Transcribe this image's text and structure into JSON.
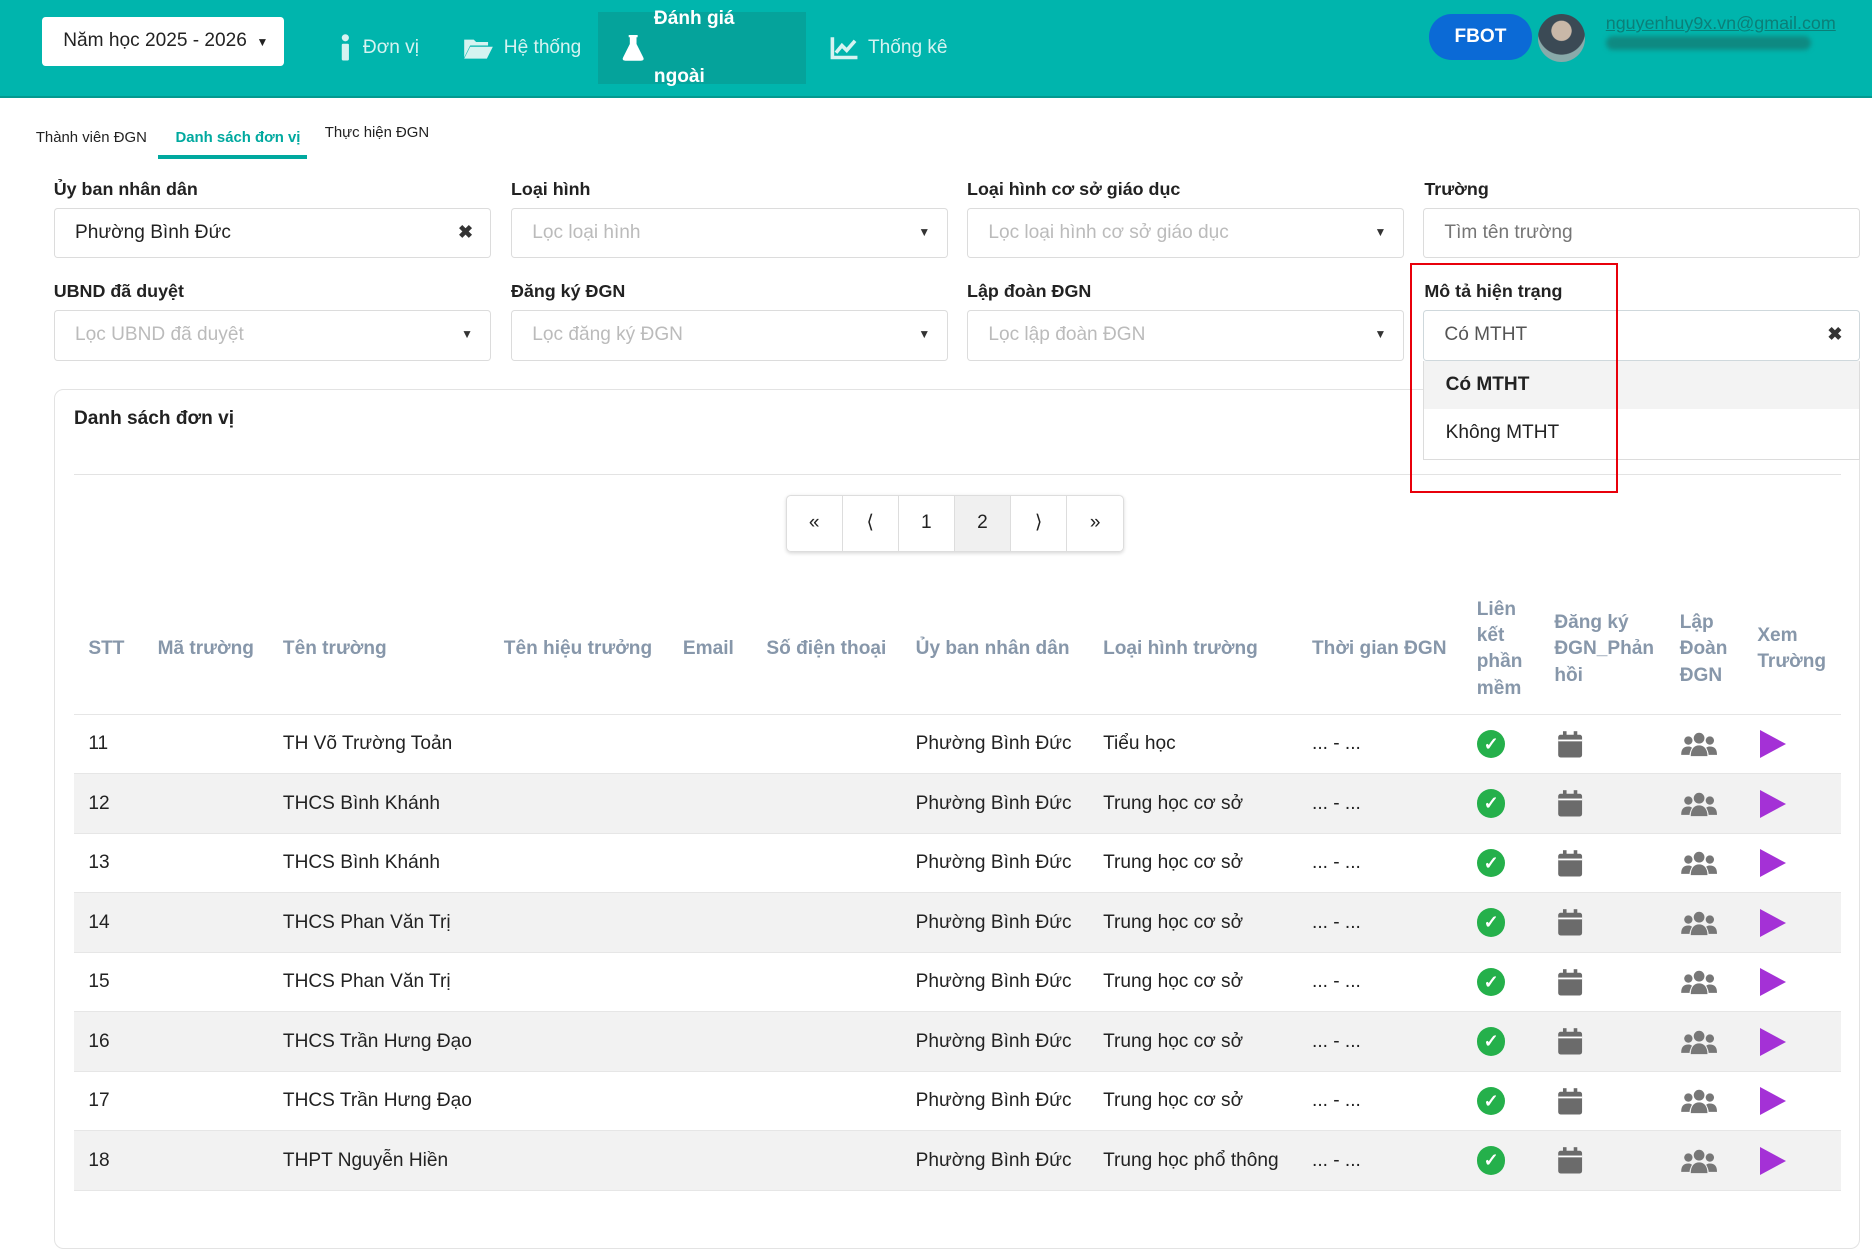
{
  "header": {
    "year_select": "Năm học 2025 - 2026",
    "nav": [
      {
        "label": "Đơn vị",
        "icon": "info-icon"
      },
      {
        "label": "Hệ thống",
        "icon": "folder-icon"
      },
      {
        "label": "Đánh giá ngoài",
        "icon": "flask-icon",
        "active": true
      },
      {
        "label": "Thống kê",
        "icon": "chart-line-icon"
      }
    ],
    "fbot": "FBOT",
    "email": "nguyenhuy9x.vn@gmail.com"
  },
  "subtabs": [
    {
      "label": "Thành viên ĐGN"
    },
    {
      "label": "Danh sách đơn vị",
      "active": true
    },
    {
      "label": "Thực hiện ĐGN"
    }
  ],
  "filters": [
    {
      "label": "Ủy ban nhân dân",
      "value": "Phường Bình Đức",
      "placeholder": ""
    },
    {
      "label": "Loại hình",
      "value": "",
      "placeholder": "Lọc loại hình"
    },
    {
      "label": "Loại hình cơ sở giáo dục",
      "value": "",
      "placeholder": "Lọc loại hình cơ sở giáo dục"
    },
    {
      "label": "Trường",
      "value": "",
      "placeholder": "Tìm tên trường"
    },
    {
      "label": "UBND đã duyệt",
      "value": "",
      "placeholder": "Lọc UBND đã duyệt"
    },
    {
      "label": "Đăng ký ĐGN",
      "value": "",
      "placeholder": "Lọc đăng ký ĐGN"
    },
    {
      "label": "Lập đoàn ĐGN",
      "value": "",
      "placeholder": "Lọc lập đoàn ĐGN"
    },
    {
      "label": "Mô tả hiện trạng",
      "value": "Có MTHT",
      "placeholder": "",
      "options": [
        "Có MTHT",
        "Không MTHT"
      ]
    }
  ],
  "card": {
    "title": "Danh sách đơn vị"
  },
  "pagination": [
    "«",
    "⟨",
    "1",
    "2",
    "⟩",
    "»"
  ],
  "current_page": "2",
  "table": {
    "columns": [
      "STT",
      "Mã trường",
      "Tên trường",
      "Tên hiệu trưởng",
      "Email",
      "Số điện thoại",
      "Ủy ban nhân dân",
      "Loại hình trường",
      "Thời gian ĐGN",
      "Liên kết phần mềm",
      "Đăng ký ĐGN_Phản hồi",
      "Lập Đoàn ĐGN",
      "Xem Trường"
    ],
    "rows": [
      {
        "stt": "11",
        "name": "TH Võ Trường Toản",
        "ubnd": "Phường Bình Đức",
        "type": "Tiểu học",
        "time": "... - ..."
      },
      {
        "stt": "12",
        "name": "THCS Bình Khánh",
        "ubnd": "Phường Bình Đức",
        "type": "Trung học cơ sở",
        "time": "... - ..."
      },
      {
        "stt": "13",
        "name": "THCS Bình Khánh",
        "ubnd": "Phường Bình Đức",
        "type": "Trung học cơ sở",
        "time": "... - ..."
      },
      {
        "stt": "14",
        "name": "THCS Phan Văn Trị",
        "ubnd": "Phường Bình Đức",
        "type": "Trung học cơ sở",
        "time": "... - ..."
      },
      {
        "stt": "15",
        "name": "THCS Phan Văn Trị",
        "ubnd": "Phường Bình Đức",
        "type": "Trung học cơ sở",
        "time": "... - ..."
      },
      {
        "stt": "16",
        "name": "THCS Trần Hưng Đạo",
        "ubnd": "Phường Bình Đức",
        "type": "Trung học cơ sở",
        "time": "... - ..."
      },
      {
        "stt": "17",
        "name": "THCS Trần Hưng Đạo",
        "ubnd": "Phường Bình Đức",
        "type": "Trung học cơ sở",
        "time": "... - ..."
      },
      {
        "stt": "18",
        "name": "THPT Nguyễn Hiền",
        "ubnd": "Phường Bình Đức",
        "type": "Trung học phổ thông",
        "time": "... - ..."
      }
    ]
  },
  "colors": {
    "header": "#00b5ad",
    "accent": "#00a99f",
    "fbot": "#0b6ad6",
    "check": "#25b04b",
    "play": "#a431d6",
    "highlight": "#e8000b"
  }
}
